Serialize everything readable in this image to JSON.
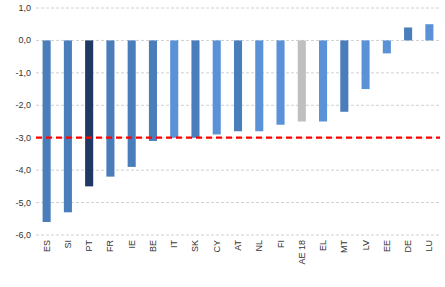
{
  "chart_data": {
    "type": "bar",
    "categories": [
      "ES",
      "SI",
      "PT",
      "FR",
      "IE",
      "BE",
      "IT",
      "SK",
      "CY",
      "AT",
      "NL",
      "FI",
      "AE 18",
      "EL",
      "MT",
      "LV",
      "EE",
      "DE",
      "LU"
    ],
    "values": [
      -5.6,
      -5.3,
      -4.5,
      -4.2,
      -3.9,
      -3.1,
      -3.0,
      -3.0,
      -2.9,
      -2.8,
      -2.8,
      -2.6,
      -2.5,
      -2.5,
      -2.2,
      -1.5,
      -0.4,
      0.4,
      0.5
    ],
    "colors": [
      "#4a7ebb",
      "#4a7ebb",
      "#1f3864",
      "#4a7ebb",
      "#4a7ebb",
      "#4a7ebb",
      "#5b91d7",
      "#4a7ebb",
      "#5b91d7",
      "#4a7ebb",
      "#5b91d7",
      "#5b91d7",
      "#bfbfbf",
      "#5b91d7",
      "#4a7ebb",
      "#5b91d7",
      "#5b91d7",
      "#4a7ebb",
      "#5b91d7"
    ],
    "ylim": [
      -6,
      1
    ],
    "yticks": [
      {
        "value": -6,
        "label": "-6,0"
      },
      {
        "value": -5,
        "label": "-5,0"
      },
      {
        "value": -4,
        "label": "-4,0"
      },
      {
        "value": -3,
        "label": "-3,0"
      },
      {
        "value": -2,
        "label": "-2,0"
      },
      {
        "value": -1,
        "label": "-1,0"
      },
      {
        "value": 0,
        "label": "0,0"
      },
      {
        "value": 1,
        "label": "1,0"
      }
    ],
    "grid": true,
    "reference_line": -3
  }
}
